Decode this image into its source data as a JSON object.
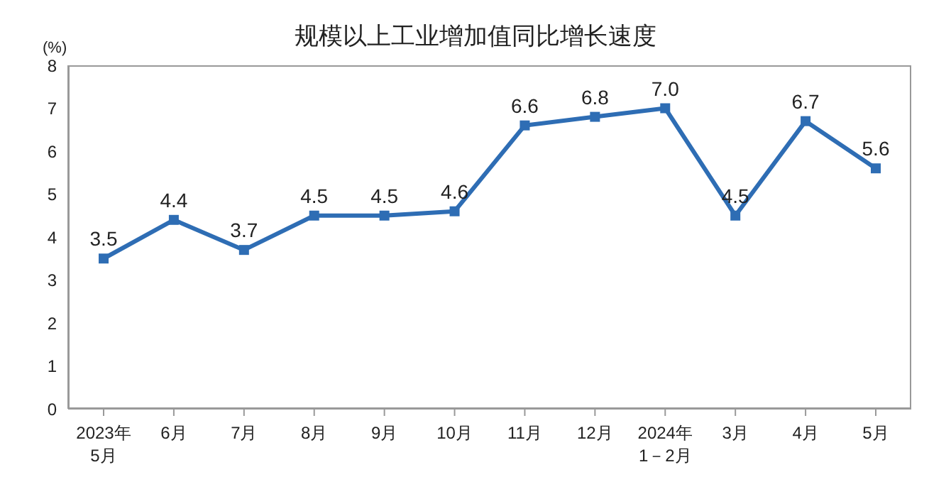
{
  "chart_data": {
    "type": "line",
    "title": "规模以上工业增加值同比增长速度",
    "ylabel": "(%)",
    "categories": [
      "2023年\n5月",
      "6月",
      "7月",
      "8月",
      "9月",
      "10月",
      "11月",
      "12月",
      "2024年\n1－2月",
      "3月",
      "4月",
      "5月"
    ],
    "series": [
      {
        "color": "#2e6db4",
        "values": [
          3.5,
          4.4,
          3.7,
          4.5,
          4.5,
          4.6,
          6.6,
          6.8,
          7.0,
          4.5,
          6.7,
          5.6
        ],
        "value_labels": [
          "3.5",
          "4.4",
          "3.7",
          "4.5",
          "4.5",
          "4.6",
          "6.6",
          "6.8",
          "7.0",
          "4.5",
          "6.7",
          "5.6"
        ]
      }
    ],
    "ylim": [
      0,
      8
    ],
    "yticks": [
      0,
      1,
      2,
      3,
      4,
      5,
      6,
      7,
      8
    ],
    "marker": "square",
    "line_style": "solid"
  }
}
